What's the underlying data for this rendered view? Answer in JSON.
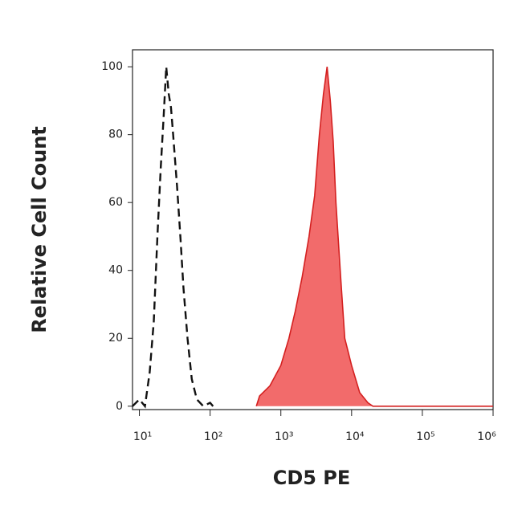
{
  "chart_data": {
    "type": "histogram-overlay",
    "xlabel": "CD5 PE",
    "ylabel": "Relative Cell Count",
    "xscale": "log",
    "xlim": [
      8,
      1000000
    ],
    "ylim": [
      -1,
      105
    ],
    "xticks": [
      {
        "value": 10,
        "label": "10¹"
      },
      {
        "value": 100,
        "label": "10²"
      },
      {
        "value": 1000,
        "label": "10³"
      },
      {
        "value": 10000,
        "label": "10⁴"
      },
      {
        "value": 100000,
        "label": "10⁵"
      },
      {
        "value": 1000000,
        "label": "10⁶"
      }
    ],
    "yticks": [
      0,
      20,
      40,
      60,
      80,
      100
    ],
    "series": [
      {
        "color": "#111111",
        "dashed": true,
        "filled": false,
        "x": [
          8,
          10,
          12,
          14,
          16,
          18,
          20,
          22,
          24,
          26,
          28,
          30,
          34,
          38,
          42,
          48,
          55,
          65,
          80,
          100,
          110
        ],
        "values": [
          0,
          2,
          0,
          10,
          25,
          50,
          70,
          85,
          100,
          92,
          88,
          80,
          65,
          50,
          35,
          20,
          8,
          2,
          0,
          1,
          0
        ]
      },
      {
        "color": "#d42020",
        "fill": "#f26b6b",
        "dashed": false,
        "filled": true,
        "x": [
          450,
          500,
          700,
          1000,
          1300,
          1600,
          2000,
          2500,
          3000,
          3500,
          4000,
          4500,
          5000,
          5500,
          6000,
          7000,
          8000,
          10000,
          13000,
          17000,
          20000,
          100000,
          1000000
        ],
        "values": [
          0,
          3,
          6,
          12,
          20,
          28,
          38,
          50,
          62,
          80,
          92,
          100,
          90,
          78,
          60,
          38,
          20,
          12,
          4,
          1,
          0,
          0,
          0
        ]
      }
    ]
  }
}
